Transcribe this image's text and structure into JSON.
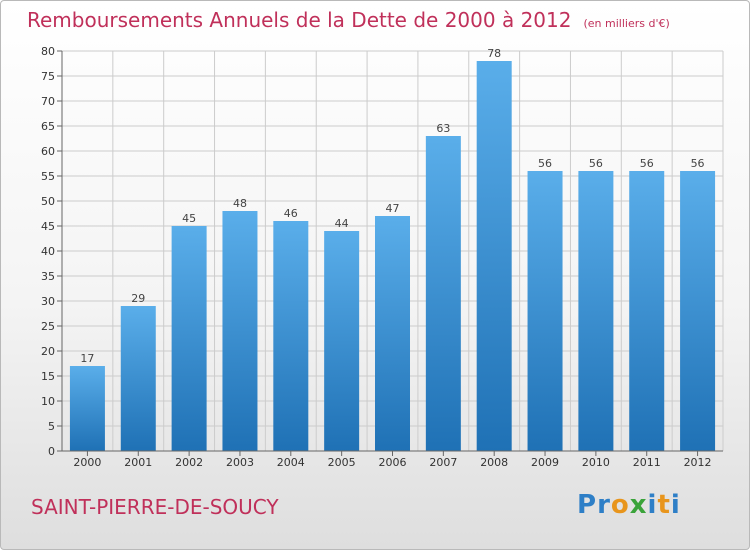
{
  "title": {
    "main": "Remboursements Annuels de la Dette de 2000 à 2012",
    "unit": "(en milliers d'€)"
  },
  "city": "SAINT-PIERRE-DE-SOUCY",
  "logo": {
    "text": "Proxiti",
    "letters": [
      "P",
      "r",
      "o",
      "x",
      "i",
      "t",
      "i"
    ],
    "colors": [
      "#2e7fc7",
      "#2e7fc7",
      "#e8951c",
      "#3aa33a",
      "#2e7fc7",
      "#e8951c",
      "#2e7fc7"
    ]
  },
  "colors": {
    "title": "#c0305a",
    "bar_light": "#5aaeea",
    "bar_dark": "#1f71b5",
    "grid": "#cccccc",
    "axis": "#666666"
  },
  "chart_data": {
    "type": "bar",
    "title": "Remboursements Annuels de la Dette de 2000 à 2012",
    "categories": [
      "2000",
      "2001",
      "2002",
      "2003",
      "2004",
      "2005",
      "2006",
      "2007",
      "2008",
      "2009",
      "2010",
      "2011",
      "2012"
    ],
    "values": [
      17,
      29,
      45,
      48,
      46,
      44,
      47,
      63,
      78,
      56,
      56,
      56,
      56
    ],
    "yticks": [
      0,
      5,
      10,
      15,
      20,
      25,
      30,
      35,
      40,
      45,
      50,
      55,
      60,
      65,
      70,
      75,
      80
    ],
    "ylim": [
      0,
      80
    ],
    "xlabel": "",
    "ylabel": "",
    "grid": true,
    "legend": "none"
  }
}
